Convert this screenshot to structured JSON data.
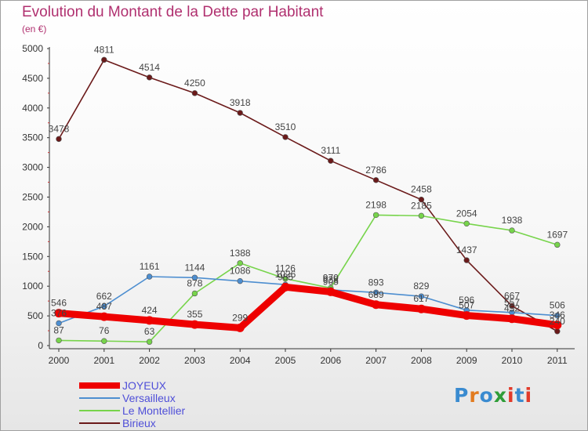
{
  "header": {
    "title": "Evolution du Montant de la Dette par Habitant",
    "subtitle": "(en €)"
  },
  "logo": {
    "text": "Proxiti",
    "colors": [
      "#3a8bd0",
      "#e27b1f",
      "#3a8bd0",
      "#2f9d38",
      "#e23a2a",
      "#3a8bd0",
      "#e23a2a"
    ]
  },
  "chart_data": {
    "type": "line",
    "title": "Evolution du Montant de la Dette par Habitant",
    "subtitle": "(en €)",
    "xlabel": "",
    "ylabel": "",
    "x": [
      "2000",
      "2001",
      "2002",
      "2003",
      "2004",
      "2005",
      "2006",
      "2007",
      "2008",
      "2009",
      "2010",
      "2011"
    ],
    "ylim": [
      0,
      5000
    ],
    "yticks": [
      0,
      500,
      1000,
      1500,
      2000,
      2500,
      3000,
      3500,
      4000,
      4500,
      5000
    ],
    "grid": false,
    "legend_position": "bottom-left",
    "series": [
      {
        "name": "JOYEUX",
        "color": "#ee0000",
        "values": [
          546,
          487,
          424,
          355,
          299,
          985,
          905,
          689,
          617,
          507,
          452,
          346
        ],
        "labels": [
          "546",
          "487",
          "424",
          "355",
          "299",
          "985",
          "905",
          "689",
          "617",
          "507",
          "452",
          "346"
        ]
      },
      {
        "name": "Versailleux",
        "color": "#4d8ed0",
        "values": [
          376,
          662,
          1161,
          1144,
          1086,
          1026,
          938,
          893,
          829,
          596,
          557,
          506
        ],
        "labels": [
          "376",
          "662",
          "1161",
          "1144",
          "1086",
          "1026",
          "938",
          "893",
          "829",
          "596",
          "557",
          "506"
        ]
      },
      {
        "name": "Le Montellier",
        "color": "#77d44b",
        "values": [
          87,
          76,
          63,
          878,
          1388,
          1126,
          970,
          2198,
          2185,
          2054,
          1938,
          1697
        ],
        "labels": [
          "87",
          "76",
          "63",
          "878",
          "1388",
          "1126",
          "970",
          "2198",
          "2185",
          "2054",
          "1938",
          "1697"
        ]
      },
      {
        "name": "Birieux",
        "color": "#6b1a1a",
        "values": [
          3478,
          4811,
          4514,
          4250,
          3918,
          3510,
          3111,
          2786,
          2458,
          1437,
          667,
          240
        ],
        "labels": [
          "3478",
          "4811",
          "4514",
          "4250",
          "3918",
          "3510",
          "3111",
          "2786",
          "2458",
          "1437",
          "667",
          "240"
        ]
      }
    ]
  }
}
